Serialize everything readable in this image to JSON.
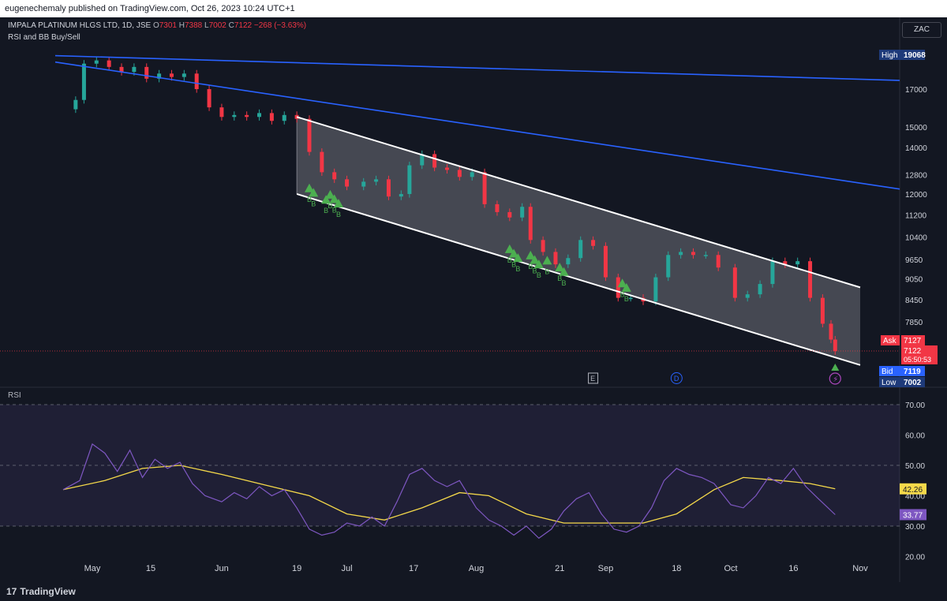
{
  "header": {
    "published": "eugenechemaly published on TradingView.com, Oct 26, 2023 10:24 UTC+1"
  },
  "legend": {
    "symbol": "IMPALA PLATINUM HLGS LTD, 1D, JSE",
    "o_label": "O",
    "o_value": "7301",
    "h_label": "H",
    "h_value": "7388",
    "l_label": "L",
    "l_value": "7002",
    "c_label": "C",
    "c_value": "7122",
    "change": "−268 (−3.63%)",
    "indicator": "RSI and BB Buy/Sell"
  },
  "currency": "ZAC",
  "rsi_title": "RSI",
  "footer": {
    "brand": "TradingView",
    "brand_mark": "17"
  },
  "colors": {
    "bg": "#131722",
    "up": "#26a69a",
    "down": "#f23645",
    "trendline": "#2962ff",
    "channel": "#ffffff",
    "buy_signal": "#4caf50",
    "rsi_line": "#7e57c2",
    "rsi_ma": "#f5d94a"
  },
  "chart_data": [
    {
      "type": "candlestick",
      "symbol": "IMPALA PLATINUM HLGS LTD",
      "interval": "1D",
      "exchange": "JSE",
      "price_scale": "log",
      "y_ticks": [
        17000,
        15000,
        14000,
        12800,
        12000,
        11200,
        10400,
        9650,
        9050,
        8450,
        7850
      ],
      "x_ticks": [
        "May",
        "15",
        "Jun",
        "19",
        "Jul",
        "17",
        "Aug",
        "21",
        "Sep",
        "18",
        "Oct",
        "16",
        "Nov"
      ],
      "price_labels": [
        {
          "label": "High",
          "value": "19068"
        },
        {
          "label": "Ask",
          "value": "7127"
        },
        {
          "label": "",
          "value": "7122",
          "sub": "05:50:53"
        },
        {
          "label": "Bid",
          "value": "7119"
        },
        {
          "label": "Low",
          "value": "7002"
        }
      ],
      "close_path": [
        [
          "Apr 24",
          15900
        ],
        [
          "Apr 27",
          16400
        ],
        [
          "Apr 29",
          18500
        ],
        [
          "May 2",
          18700
        ],
        [
          "May 5",
          18300
        ],
        [
          "May 8",
          18000
        ],
        [
          "May 11",
          18300
        ],
        [
          "May 14",
          17600
        ],
        [
          "May 17",
          17900
        ],
        [
          "May 20",
          17700
        ],
        [
          "May 23",
          17900
        ],
        [
          "May 26",
          17000
        ],
        [
          "May 29",
          16000
        ],
        [
          "Jun 1",
          15500
        ],
        [
          "Jun 4",
          15600
        ],
        [
          "Jun 7",
          15500
        ],
        [
          "Jun 10",
          15700
        ],
        [
          "Jun 13",
          15300
        ],
        [
          "Jun 16",
          15600
        ],
        [
          "Jun 19",
          15400
        ],
        [
          "Jun 22",
          13800
        ],
        [
          "Jun 25",
          12900
        ],
        [
          "Jun 28",
          12600
        ],
        [
          "Jul 1",
          12300
        ],
        [
          "Jul 5",
          12500
        ],
        [
          "Jul 8",
          12600
        ],
        [
          "Jul 11",
          11900
        ],
        [
          "Jul 14",
          12000
        ],
        [
          "Jul 16",
          13200
        ],
        [
          "Jul 19",
          13700
        ],
        [
          "Jul 22",
          13100
        ],
        [
          "Jul 25",
          13000
        ],
        [
          "Jul 28",
          12700
        ],
        [
          "Jul 31",
          12900
        ],
        [
          "Aug 3",
          11600
        ],
        [
          "Aug 6",
          11300
        ],
        [
          "Aug 9",
          11100
        ],
        [
          "Aug 12",
          11500
        ],
        [
          "Aug 14",
          10300
        ],
        [
          "Aug 17",
          9900
        ],
        [
          "Aug 20",
          9500
        ],
        [
          "Aug 23",
          9700
        ],
        [
          "Aug 26",
          10300
        ],
        [
          "Aug 29",
          10100
        ],
        [
          "Sep 1",
          9100
        ],
        [
          "Sep 4",
          8500
        ],
        [
          "Sep 7",
          8500
        ],
        [
          "Sep 10",
          8400
        ],
        [
          "Sep 13",
          9100
        ],
        [
          "Sep 16",
          9800
        ],
        [
          "Sep 19",
          9900
        ],
        [
          "Sep 22",
          9800
        ],
        [
          "Sep 25",
          9800
        ],
        [
          "Sep 28",
          9400
        ],
        [
          "Oct 2",
          8500
        ],
        [
          "Oct 5",
          8600
        ],
        [
          "Oct 8",
          8900
        ],
        [
          "Oct 11",
          9600
        ],
        [
          "Oct 14",
          9500
        ],
        [
          "Oct 17",
          9600
        ],
        [
          "Oct 20",
          8500
        ],
        [
          "Oct 23",
          7800
        ],
        [
          "Oct 25",
          7400
        ],
        [
          "Oct 26",
          7122
        ]
      ],
      "trendlines": [
        {
          "name": "long-term-resistance",
          "from": [
            "Apr 24",
            19000
          ],
          "to": [
            "Nov 1",
            17500
          ]
        },
        {
          "name": "mid-term-resistance",
          "from": [
            "Apr 24",
            18600
          ],
          "to": [
            "Nov 1",
            12200
          ]
        }
      ],
      "channel": {
        "upper": {
          "from": [
            "Jun 19",
            15500
          ],
          "to": [
            "Nov 1",
            8800
          ]
        },
        "lower": {
          "from": [
            "Jun 19",
            12000
          ],
          "to": [
            "Nov 1",
            6800
          ]
        }
      },
      "buy_signals": [
        {
          "x": "Jun 22",
          "label": "B"
        },
        {
          "x": "Jun 23",
          "label": "B"
        },
        {
          "x": "Jun 26",
          "label": "B"
        },
        {
          "x": "Jun 27",
          "label": "B"
        },
        {
          "x": "Jun 28",
          "label": "B"
        },
        {
          "x": "Jun 29",
          "label": "B"
        },
        {
          "x": "Aug 9",
          "label": "B"
        },
        {
          "x": "Aug 10",
          "label": "B"
        },
        {
          "x": "Aug 11",
          "label": "B"
        },
        {
          "x": "Aug 14",
          "label": "B"
        },
        {
          "x": "Aug 15",
          "label": "B"
        },
        {
          "x": "Aug 16",
          "label": "B"
        },
        {
          "x": "Aug 18",
          "label": "B"
        },
        {
          "x": "Aug 21",
          "label": "B"
        },
        {
          "x": "Aug 22",
          "label": "B"
        },
        {
          "x": "Sep 5",
          "label": "B"
        },
        {
          "x": "Sep 6",
          "label": "B"
        }
      ],
      "event_markers": [
        {
          "x": "Aug 29",
          "label": "E"
        },
        {
          "x": "Sep 18",
          "label": "D"
        }
      ]
    },
    {
      "type": "line",
      "title": "RSI",
      "ylim": [
        20,
        70
      ],
      "y_ticks": [
        70.0,
        60.0,
        50.0,
        40.0,
        30.0,
        20.0
      ],
      "bands": {
        "upper": 70,
        "middle": 50,
        "lower": 30
      },
      "value_labels": [
        {
          "value": "42.26",
          "series": "ma"
        },
        {
          "value": "33.77",
          "series": "rsi"
        }
      ],
      "series": [
        {
          "values": [
            [
              "Apr 24",
              42
            ],
            [
              "Apr 28",
              45
            ],
            [
              "May 1",
              57
            ],
            [
              "May 4",
              54
            ],
            [
              "May 7",
              48
            ],
            [
              "May 10",
              55
            ],
            [
              "May 13",
              46
            ],
            [
              "May 16",
              52
            ],
            [
              "May 19",
              49
            ],
            [
              "May 22",
              51
            ],
            [
              "May 25",
              44
            ],
            [
              "May 28",
              40
            ],
            [
              "Jun 1",
              38
            ],
            [
              "Jun 4",
              41
            ],
            [
              "Jun 7",
              39
            ],
            [
              "Jun 10",
              43
            ],
            [
              "Jun 13",
              40
            ],
            [
              "Jun 16",
              42
            ],
            [
              "Jun 19",
              36
            ],
            [
              "Jun 22",
              29
            ],
            [
              "Jun 25",
              27
            ],
            [
              "Jun 28",
              28
            ],
            [
              "Jul 1",
              31
            ],
            [
              "Jul 4",
              30
            ],
            [
              "Jul 7",
              33
            ],
            [
              "Jul 10",
              30
            ],
            [
              "Jul 13",
              38
            ],
            [
              "Jul 16",
              47
            ],
            [
              "Jul 19",
              49
            ],
            [
              "Jul 22",
              45
            ],
            [
              "Jul 25",
              43
            ],
            [
              "Jul 28",
              45
            ],
            [
              "Aug 1",
              36
            ],
            [
              "Aug 4",
              32
            ],
            [
              "Aug 7",
              30
            ],
            [
              "Aug 10",
              27
            ],
            [
              "Aug 13",
              30
            ],
            [
              "Aug 16",
              26
            ],
            [
              "Aug 19",
              29
            ],
            [
              "Aug 22",
              35
            ],
            [
              "Aug 25",
              39
            ],
            [
              "Aug 28",
              41
            ],
            [
              "Aug 31",
              34
            ],
            [
              "Sep 3",
              29
            ],
            [
              "Sep 6",
              28
            ],
            [
              "Sep 9",
              30
            ],
            [
              "Sep 12",
              36
            ],
            [
              "Sep 15",
              45
            ],
            [
              "Sep 18",
              49
            ],
            [
              "Sep 21",
              47
            ],
            [
              "Sep 24",
              46
            ],
            [
              "Sep 27",
              44
            ],
            [
              "Oct 1",
              37
            ],
            [
              "Oct 4",
              36
            ],
            [
              "Oct 7",
              40
            ],
            [
              "Oct 10",
              46
            ],
            [
              "Oct 13",
              44
            ],
            [
              "Oct 16",
              49
            ],
            [
              "Oct 19",
              43
            ],
            [
              "Oct 22",
              39
            ],
            [
              "Oct 26",
              33.77
            ]
          ]
        },
        {
          "values": [
            [
              "Apr 24",
              42
            ],
            [
              "May 4",
              45
            ],
            [
              "May 13",
              49
            ],
            [
              "May 22",
              50
            ],
            [
              "Jun 1",
              47
            ],
            [
              "Jun 13",
              43
            ],
            [
              "Jun 22",
              40
            ],
            [
              "Jul 1",
              34
            ],
            [
              "Jul 10",
              32
            ],
            [
              "Jul 19",
              36
            ],
            [
              "Jul 28",
              41
            ],
            [
              "Aug 4",
              40
            ],
            [
              "Aug 13",
              34
            ],
            [
              "Aug 22",
              31
            ],
            [
              "Sep 1",
              31
            ],
            [
              "Sep 10",
              31
            ],
            [
              "Sep 18",
              34
            ],
            [
              "Sep 27",
              42
            ],
            [
              "Oct 4",
              46
            ],
            [
              "Oct 13",
              45
            ],
            [
              "Oct 20",
              44
            ],
            [
              "Oct 26",
              42.26
            ]
          ]
        }
      ]
    }
  ]
}
